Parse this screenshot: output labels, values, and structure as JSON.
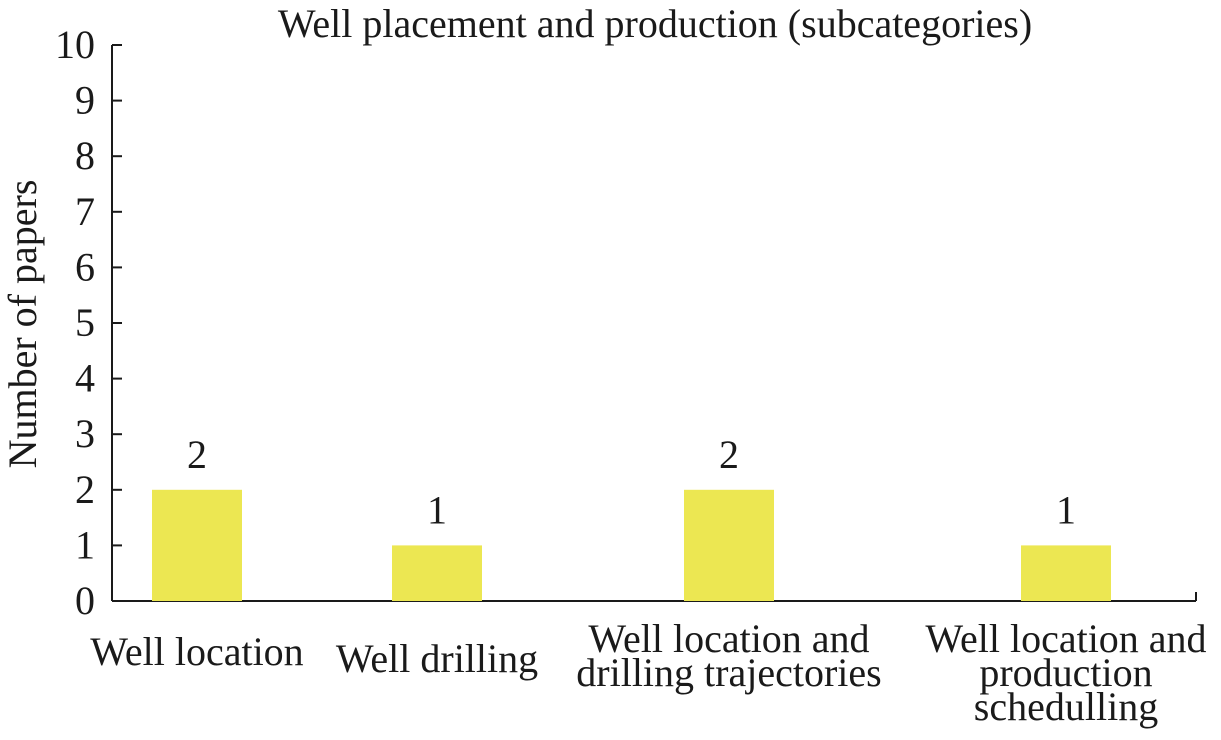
{
  "chart_data": {
    "type": "bar",
    "title": "Well placement and production (subcategories)",
    "xlabel": "",
    "ylabel": "Number of papers",
    "categories": [
      [
        "Well location"
      ],
      [
        "Well drilling"
      ],
      [
        "Well location and",
        "drilling trajectories"
      ],
      [
        "Well location and",
        "production",
        "schedulling"
      ]
    ],
    "values": [
      2,
      1,
      2,
      1
    ],
    "data_labels": [
      "2",
      "1",
      "2",
      "1"
    ],
    "ylim": [
      0,
      10
    ],
    "yticks": [
      0,
      1,
      2,
      3,
      4,
      5,
      6,
      7,
      8,
      9,
      10
    ],
    "grid": false,
    "legend": "none",
    "bar_color": "#ece752"
  }
}
